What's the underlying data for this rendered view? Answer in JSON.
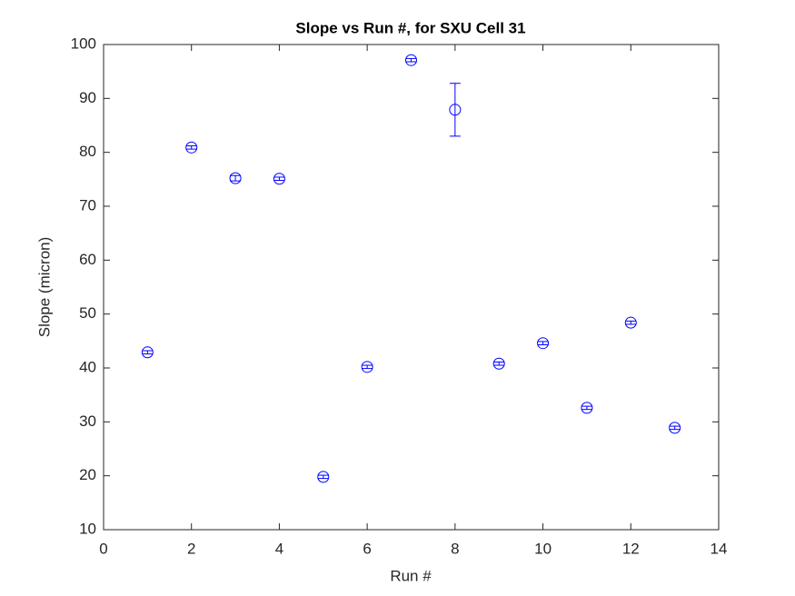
{
  "chart_data": {
    "type": "errorbar",
    "title": "Slope vs Run #, for SXU Cell 31",
    "xlabel": "Run #",
    "ylabel": "Slope (micron)",
    "x": [
      1,
      2,
      3,
      4,
      5,
      6,
      7,
      8,
      9,
      10,
      11,
      12,
      13
    ],
    "values": [
      42.9,
      80.9,
      75.2,
      75.1,
      19.8,
      40.2,
      97.1,
      87.9,
      40.8,
      44.6,
      32.6,
      48.4,
      28.9
    ],
    "errors": [
      0.3,
      0.3,
      0.5,
      0.3,
      0.3,
      0.3,
      0.3,
      4.9,
      0.3,
      0.3,
      0.3,
      0.3,
      0.3
    ],
    "color": "#0000ff",
    "xlim": [
      0,
      14
    ],
    "xticks": [
      0,
      2,
      4,
      6,
      8,
      10,
      12,
      14
    ],
    "ylim": [
      10,
      100
    ],
    "yticks": [
      10,
      20,
      30,
      40,
      50,
      60,
      70,
      80,
      90,
      100
    ]
  }
}
